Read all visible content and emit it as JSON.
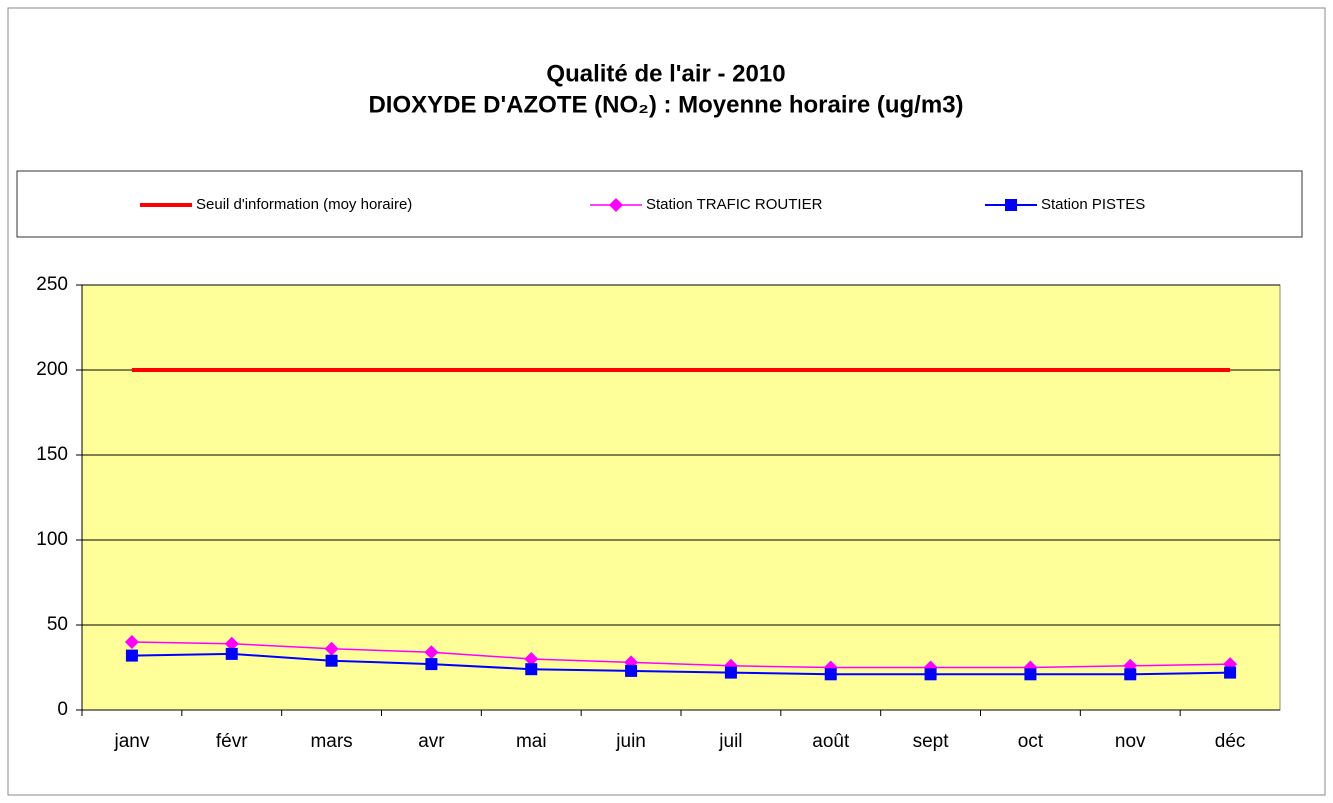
{
  "chart_data": {
    "type": "line",
    "title": "Qualité de l'air - 2010",
    "subtitle": "DIOXYDE D'AZOTE (NO₂) : Moyenne horaire (ug/m3)",
    "categories": [
      "janv",
      "févr",
      "mars",
      "avr",
      "mai",
      "juin",
      "juil",
      "août",
      "sept",
      "oct",
      "nov",
      "déc"
    ],
    "series": [
      {
        "name": "Seuil d'information (moy horaire)",
        "color": "#ff0000",
        "marker": "none",
        "values": [
          200,
          200,
          200,
          200,
          200,
          200,
          200,
          200,
          200,
          200,
          200,
          200
        ]
      },
      {
        "name": "Station TRAFIC ROUTIER",
        "color": "#ff00ff",
        "marker": "diamond",
        "values": [
          40,
          39,
          36,
          34,
          30,
          28,
          26,
          25,
          25,
          25,
          26,
          27
        ]
      },
      {
        "name": "Station PISTES",
        "color": "#0000ff",
        "marker": "square",
        "values": [
          32,
          33,
          29,
          27,
          24,
          23,
          22,
          21,
          21,
          21,
          21,
          22
        ]
      }
    ],
    "ylim": [
      0,
      250
    ],
    "yticks": [
      0,
      50,
      100,
      150,
      200,
      250
    ],
    "grid": true,
    "plot_background": "#ffff99",
    "legend": "top"
  }
}
